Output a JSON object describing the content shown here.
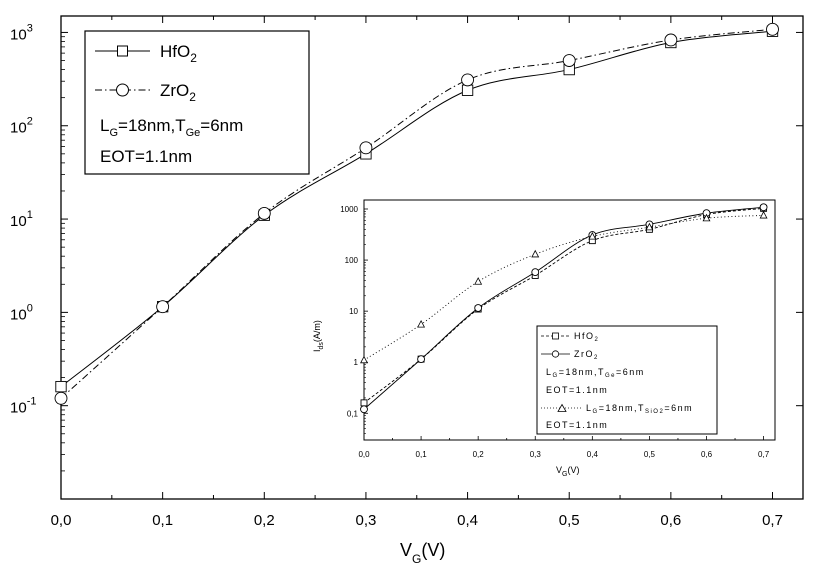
{
  "chart_data": [
    {
      "type": "line",
      "title": "",
      "xlabel": "V_G (V)",
      "ylabel": "",
      "x_scale": "linear",
      "y_scale": "log",
      "xlim": [
        0.0,
        0.73
      ],
      "ylim": [
        0.01,
        1500
      ],
      "x_ticks": [
        "0,0",
        "0,1",
        "0,2",
        "0,3",
        "0,4",
        "0,5",
        "0,6",
        "0,7"
      ],
      "y_ticks": [
        "10^-1",
        "10^0",
        "10^1",
        "10^2",
        "10^3"
      ],
      "series": [
        {
          "name": "HfO2",
          "marker": "square",
          "line": "solid",
          "x": [
            0.0,
            0.1,
            0.2,
            0.3,
            0.4,
            0.5,
            0.6,
            0.7
          ],
          "y": [
            0.16,
            1.15,
            11,
            50,
            240,
            400,
            780,
            1030
          ]
        },
        {
          "name": "ZrO2",
          "marker": "circle",
          "line": "dash-dot",
          "x": [
            0.0,
            0.1,
            0.2,
            0.3,
            0.4,
            0.5,
            0.6,
            0.7
          ],
          "y": [
            0.12,
            1.15,
            11.5,
            58,
            310,
            500,
            830,
            1080
          ]
        }
      ],
      "legend": {
        "position": "top-left",
        "entries": [
          "HfO2",
          "ZrO2"
        ],
        "notes": [
          "L_G=18nm,T_Ge=6nm",
          "EOT=1.1nm"
        ]
      }
    },
    {
      "type": "line",
      "title": "",
      "xlabel": "V_G(V)",
      "ylabel": "I_ds(A/m)",
      "x_scale": "linear",
      "y_scale": "log",
      "xlim": [
        0.0,
        0.72
      ],
      "ylim": [
        0.03,
        1500
      ],
      "x_ticks": [
        "0,0",
        "0,1",
        "0,2",
        "0,3",
        "0,4",
        "0,5",
        "0,6",
        "0,7"
      ],
      "y_ticks": [
        "0,1",
        "1",
        "10",
        "100",
        "1000"
      ],
      "series": [
        {
          "name": "HfO2",
          "marker": "square",
          "line": "dashed",
          "x": [
            0.0,
            0.1,
            0.2,
            0.3,
            0.4,
            0.5,
            0.6,
            0.7
          ],
          "y": [
            0.16,
            1.15,
            11,
            50,
            240,
            400,
            780,
            1030
          ]
        },
        {
          "name": "ZrO2",
          "marker": "circle",
          "line": "solid",
          "x": [
            0.0,
            0.1,
            0.2,
            0.3,
            0.4,
            0.5,
            0.6,
            0.7
          ],
          "y": [
            0.12,
            1.15,
            11.5,
            58,
            310,
            500,
            830,
            1080
          ]
        },
        {
          "name": "L_G=18nm,T_SiO2=6nm",
          "marker": "triangle",
          "line": "dotted",
          "x": [
            0.0,
            0.1,
            0.2,
            0.3,
            0.4,
            0.5,
            0.6,
            0.7
          ],
          "y": [
            1.1,
            5.5,
            38,
            130,
            290,
            440,
            660,
            750
          ]
        }
      ],
      "legend": {
        "position": "bottom-right",
        "entries": [
          "HfO2",
          "ZrO2",
          "L_G=18nm,T_SiO2=6nm"
        ],
        "notes": [
          "L_G=18nm,T_Ge=6nm",
          "EOT=1.1nm",
          "EOT=1.1nm"
        ]
      }
    }
  ],
  "main": {
    "xlabel_main": "V",
    "xlabel_sub": "G",
    "xlabel_unit": "(V)",
    "y_tick_base": "10",
    "y_tick_exps": [
      "-1",
      "0",
      "1",
      "2",
      "3"
    ],
    "legend": {
      "hfo2_main": "HfO",
      "hfo2_sub": "2",
      "zro2_main": "ZrO",
      "zro2_sub": "2",
      "lg_main": "L",
      "lg_sub": "G",
      "lg_mid": "=18nm,T",
      "tge_sub": "Ge",
      "tge_end": "=6nm",
      "eot": "EOT=1.1nm"
    }
  },
  "inset": {
    "ylabel_main": "I",
    "ylabel_sub": "ds",
    "ylabel_unit": "(A/m)",
    "xlabel_main": "V",
    "xlabel_sub": "G",
    "xlabel_unit": "(V)",
    "legend": {
      "hfo2_main": "HfO",
      "hfo2_sub": "2",
      "zro2_main": "ZrO",
      "zro2_sub": "2",
      "lg1_main": "L",
      "lg1_sub": "G",
      "lg1_mid": "=18nm,T",
      "tge_sub": "Ge",
      "tge_end": "=6nm",
      "eot1": "EOT=1.1nm",
      "lg2_main": "L",
      "lg2_sub": "G",
      "lg2_mid": "=18nm,T",
      "tsio2_sub": "SiO2",
      "tsio2_end": "=6nm",
      "eot2": "EOT=1.1nm"
    }
  }
}
